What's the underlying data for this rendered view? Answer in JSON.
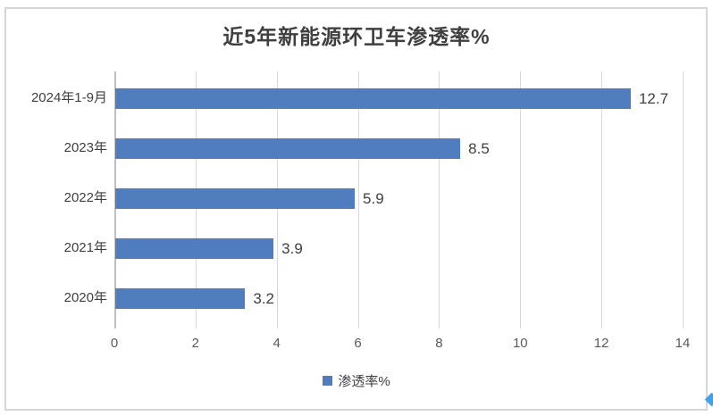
{
  "chart_data": {
    "type": "bar",
    "orientation": "horizontal",
    "title": "近5年新能源环卫车渗透率%",
    "categories": [
      "2024年1-9月",
      "2023年",
      "2022年",
      "2021年",
      "2020年"
    ],
    "values": [
      12.7,
      8.5,
      5.9,
      3.9,
      3.2
    ],
    "value_labels": [
      "12.7",
      "8.5",
      "5.9",
      "3.9",
      "3.2"
    ],
    "xlabel": "",
    "ylabel": "",
    "xlim": [
      0,
      14
    ],
    "xticks": [
      0,
      2,
      4,
      6,
      8,
      10,
      12,
      14
    ],
    "xtick_labels": [
      "0",
      "2",
      "4",
      "6",
      "8",
      "10",
      "12",
      "14"
    ],
    "grid": "vertical",
    "legend_position": "bottom",
    "series": [
      {
        "name": "渗透率%",
        "color": "#4F7DBE",
        "values": [
          12.7,
          8.5,
          5.9,
          3.9,
          3.2
        ]
      }
    ]
  },
  "legend": {
    "label": "渗透率%"
  },
  "colors": {
    "bar": "#4F7DBE",
    "title_text": "#3F3F3F",
    "label_text": "#404040",
    "tick_text": "#595959",
    "gridline": "#D9D9D9",
    "axis_line": "#BFBFBF",
    "frame_border": "#D6D6D6",
    "edge_marker": "#3FA2EE"
  }
}
